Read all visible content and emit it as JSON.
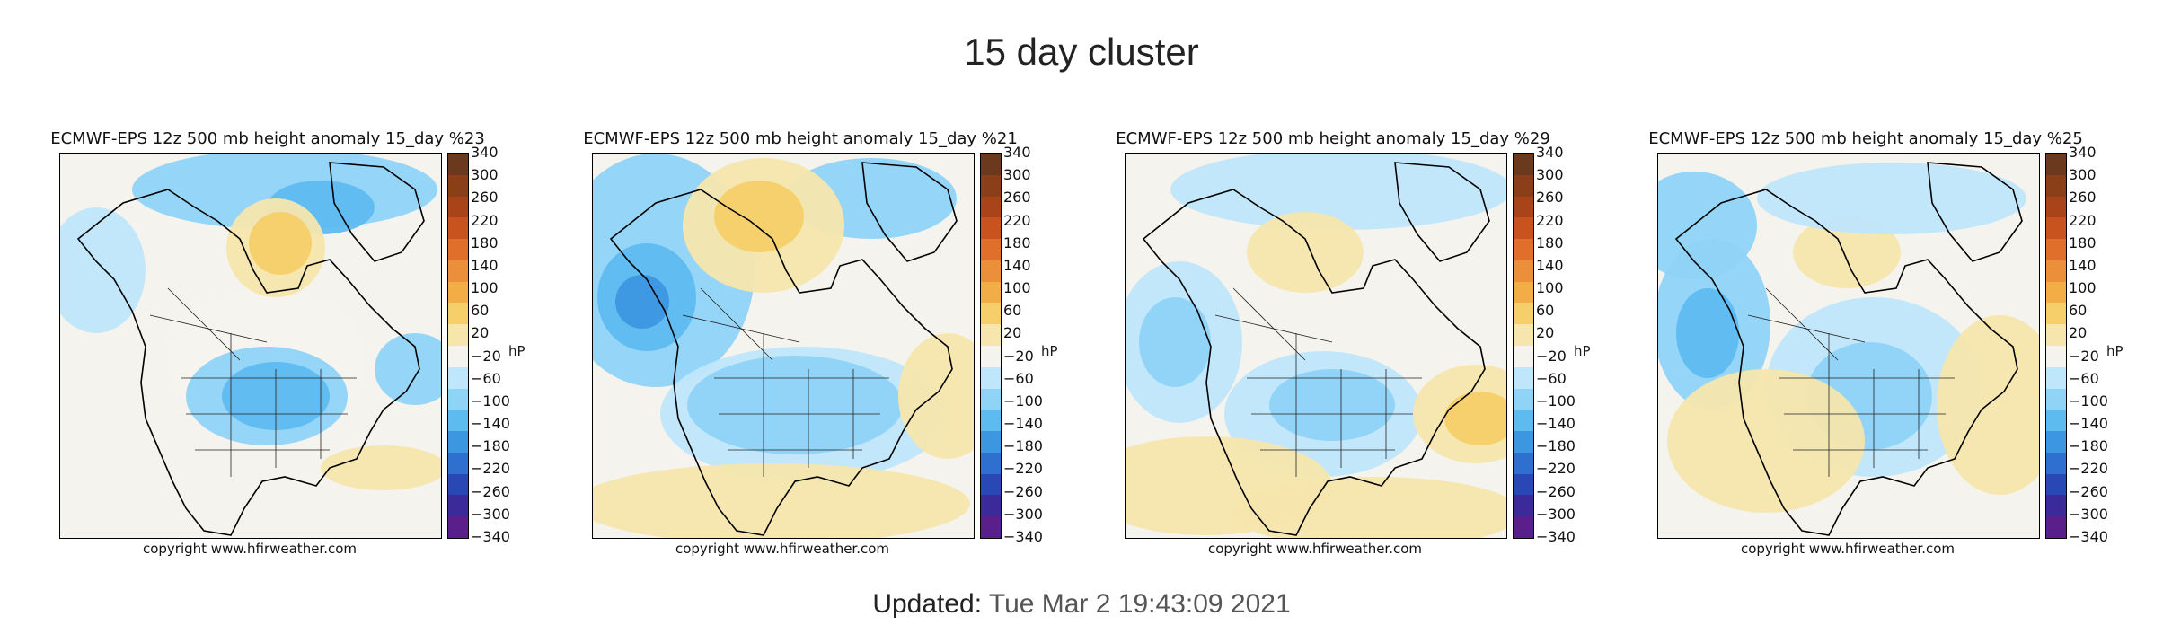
{
  "page": {
    "title": "15 day cluster"
  },
  "updated": {
    "label": "Updated:",
    "value": "Tue Mar 2 19:43:09 2021"
  },
  "colorbar": {
    "ticks": [
      "340",
      "300",
      "260",
      "220",
      "180",
      "140",
      "100",
      "60",
      "20",
      "−20",
      "−60",
      "−100",
      "−140",
      "−180",
      "−220",
      "−260",
      "−300",
      "−340"
    ],
    "unit": "hP",
    "colors": [
      "#6b3a1e",
      "#8a3f18",
      "#a9431a",
      "#c8531f",
      "#df6f2b",
      "#ec8f3a",
      "#f3ad47",
      "#f7cf6a",
      "#f6e6ad",
      "#f5f3ee",
      "#bfe6fb",
      "#8fd3f7",
      "#5ebbf0",
      "#3d97e0",
      "#2f6fcf",
      "#2a48b5",
      "#3a2a9a",
      "#5a1f8a"
    ]
  },
  "panels": [
    {
      "title": "ECMWF-EPS 12z 500 mb height anomaly 15_day %23",
      "copyright": "copyright www.hfirweather.com"
    },
    {
      "title": "ECMWF-EPS 12z 500 mb height anomaly 15_day %21",
      "copyright": "copyright www.hfirweather.com"
    },
    {
      "title": "ECMWF-EPS 12z 500 mb height anomaly 15_day %29",
      "copyright": "copyright www.hfirweather.com"
    },
    {
      "title": "ECMWF-EPS 12z 500 mb height anomaly 15_day %25",
      "copyright": "copyright www.hfirweather.com"
    }
  ]
}
